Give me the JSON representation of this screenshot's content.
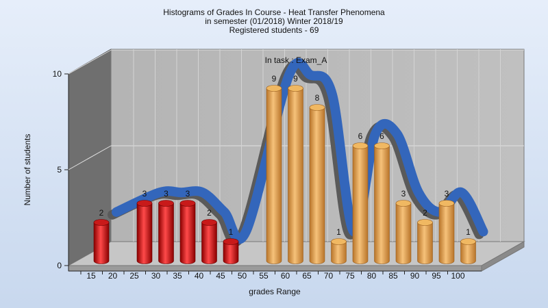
{
  "chart_data": {
    "type": "bar",
    "title": [
      "Histograms of Grades  In Course - Heat Transfer Phenomena",
      "in semester  (01/2018) Winter 2018/19",
      "Registered students - 69"
    ],
    "annotation": "In task : Exam_A",
    "xlabel": "grades Range",
    "ylabel": "Number of students",
    "ylim": [
      0,
      10
    ],
    "yticks": [
      0,
      5,
      10
    ],
    "xtick_labels": [
      "15",
      "20",
      "25",
      "30",
      "35",
      "40",
      "45",
      "50",
      "55",
      "60",
      "65",
      "70",
      "75",
      "80",
      "85",
      "90",
      "95",
      "100"
    ],
    "categories": [
      "15",
      "25",
      "30",
      "35",
      "40",
      "45",
      "55",
      "60",
      "65",
      "70",
      "75",
      "80",
      "85",
      "90",
      "95",
      "100"
    ],
    "values": [
      2,
      3,
      3,
      3,
      2,
      1,
      9,
      9,
      8,
      1,
      6,
      6,
      3,
      2,
      3,
      1
    ],
    "series_colors": {
      "fail": "#dd2222",
      "pass": "#e8a850",
      "curve": "#3366bb"
    },
    "grid": true
  }
}
